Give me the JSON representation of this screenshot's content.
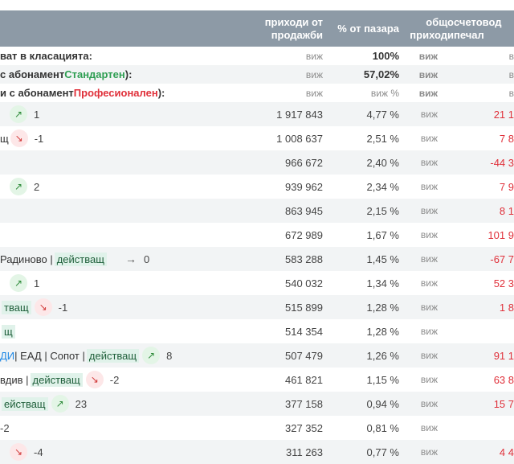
{
  "header": {
    "col_revenue": "приходи от продажби",
    "col_share": "% от пазара",
    "col_total": "общо приходи",
    "col_accounting": "счетовод печал"
  },
  "summary": [
    {
      "label": "ват в класацията:",
      "revenue": "виж",
      "share": "100%",
      "total": "виж",
      "acc": "в"
    },
    {
      "label_prefix": "с абонамент ",
      "label_plan": "Стандартен",
      "label_suffix": "):",
      "revenue": "виж",
      "share": "57,02%",
      "total": "виж",
      "acc": "в"
    },
    {
      "label_prefix": "и с абонамент ",
      "label_plan": "Професионален",
      "label_suffix": "):",
      "revenue": "виж",
      "share": "виж %",
      "total": "виж",
      "acc": "в"
    }
  ],
  "rows": [
    {
      "pre": "",
      "status": "",
      "trend": "up",
      "change": "1",
      "revenue": "1 917 843",
      "share": "4,77 %",
      "total": "виж",
      "acc": "21 1"
    },
    {
      "pre": "щ",
      "status": "",
      "trend": "down",
      "change": "-1",
      "revenue": "1 008 637",
      "share": "2,51 %",
      "total": "виж",
      "acc": "7 8"
    },
    {
      "pre": "",
      "status": "",
      "trend": "",
      "change": "",
      "revenue": "966 672",
      "share": "2,40 %",
      "total": "виж",
      "acc": "-44 3"
    },
    {
      "pre": "",
      "status": "",
      "trend": "up",
      "change": "2",
      "revenue": "939 962",
      "share": "2,34 %",
      "total": "виж",
      "acc": "7 9"
    },
    {
      "pre": "",
      "status": "",
      "trend": "",
      "change": "",
      "revenue": "863 945",
      "share": "2,15 %",
      "total": "виж",
      "acc": "8 1"
    },
    {
      "pre": "",
      "status": "",
      "trend": "",
      "change": "",
      "revenue": "672 989",
      "share": "1,67 %",
      "total": "виж",
      "acc": "101 9"
    },
    {
      "pre": "Радиново | ",
      "status": "действащ",
      "trend": "flat",
      "change": "0",
      "revenue": "583 288",
      "share": "1,45 %",
      "total": "виж",
      "acc": "-67 7"
    },
    {
      "pre": "",
      "status": "",
      "trend": "up",
      "change": "1",
      "revenue": "540 032",
      "share": "1,34 %",
      "total": "виж",
      "acc": "52 3"
    },
    {
      "pre": "",
      "status": "тващ",
      "trend": "down",
      "change": "-1",
      "revenue": "515 899",
      "share": "1,28 %",
      "total": "виж",
      "acc": "1 8"
    },
    {
      "pre": "",
      "status": "щ",
      "trend": "",
      "change": "",
      "revenue": "514 354",
      "share": "1,28 %",
      "total": "виж",
      "acc": ""
    },
    {
      "pre_link": "ДИ",
      "pre": " | ЕАД | Сопот | ",
      "status": "действащ",
      "trend": "up",
      "change": "8",
      "revenue": "507 479",
      "share": "1,26 %",
      "total": "виж",
      "acc": "91 1"
    },
    {
      "pre": "вдив | ",
      "status": "действащ",
      "trend": "down",
      "change": "-2",
      "revenue": "461 821",
      "share": "1,15 %",
      "total": "виж",
      "acc": "63 8"
    },
    {
      "pre": "",
      "status": "ействащ",
      "trend": "up",
      "change": "23",
      "revenue": "377 158",
      "share": "0,94 %",
      "total": "виж",
      "acc": "15 7"
    },
    {
      "pre": "",
      "status": "",
      "trend": "",
      "change": "-2",
      "revenue": "327 352",
      "share": "0,81 %",
      "total": "виж",
      "acc": ""
    },
    {
      "pre": "",
      "status": "",
      "trend": "down",
      "change": "-4",
      "revenue": "311 263",
      "share": "0,77 %",
      "total": "виж",
      "acc": "4 4"
    }
  ]
}
